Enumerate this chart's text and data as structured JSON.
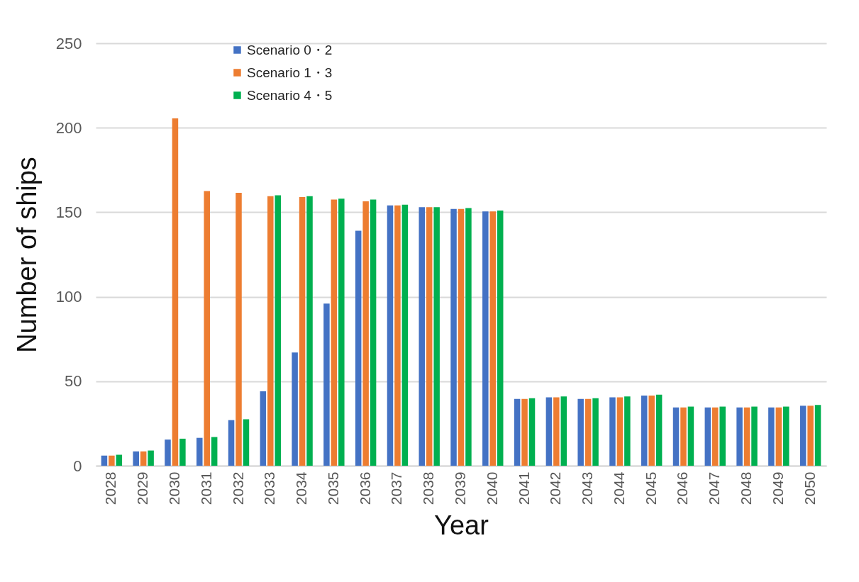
{
  "chart_data": {
    "type": "bar",
    "xlabel": "Year",
    "ylabel": "Number of ships",
    "categories": [
      "2028",
      "2029",
      "2030",
      "2031",
      "2032",
      "2033",
      "2034",
      "2035",
      "2036",
      "2037",
      "2038",
      "2039",
      "2040",
      "2041",
      "2042",
      "2043",
      "2044",
      "2045",
      "2046",
      "2047",
      "2048",
      "2049",
      "2050"
    ],
    "series": [
      {
        "name": "Scenario 0・2",
        "color": "#4472c4",
        "values": [
          6,
          8.5,
          15.5,
          16.5,
          27,
          44,
          67,
          96,
          139,
          154,
          153,
          152,
          150.5,
          39.5,
          40.5,
          39.5,
          40.5,
          41.5,
          34.5,
          34.5,
          34.5,
          34.5,
          35.5
        ]
      },
      {
        "name": "Scenario 1・3",
        "color": "#ed7d31",
        "values": [
          6,
          8.5,
          205.5,
          162.5,
          161.5,
          159.5,
          159,
          157.5,
          156.5,
          154,
          153,
          152,
          150.5,
          39.5,
          40.5,
          39.5,
          40.5,
          41.5,
          34.5,
          34.5,
          34.5,
          34.5,
          35.5
        ]
      },
      {
        "name": "Scenario 4・5",
        "color": "#00b050",
        "values": [
          6.5,
          9,
          16,
          17,
          27.5,
          160,
          159.5,
          158,
          157.5,
          154.5,
          153,
          152.5,
          151,
          40,
          41,
          40,
          41,
          42,
          35,
          35,
          35,
          35,
          36
        ]
      }
    ],
    "ylim": [
      0,
      250
    ],
    "yticks": [
      0,
      50,
      100,
      150,
      200,
      250
    ],
    "grid": "y",
    "legend": "top left"
  }
}
